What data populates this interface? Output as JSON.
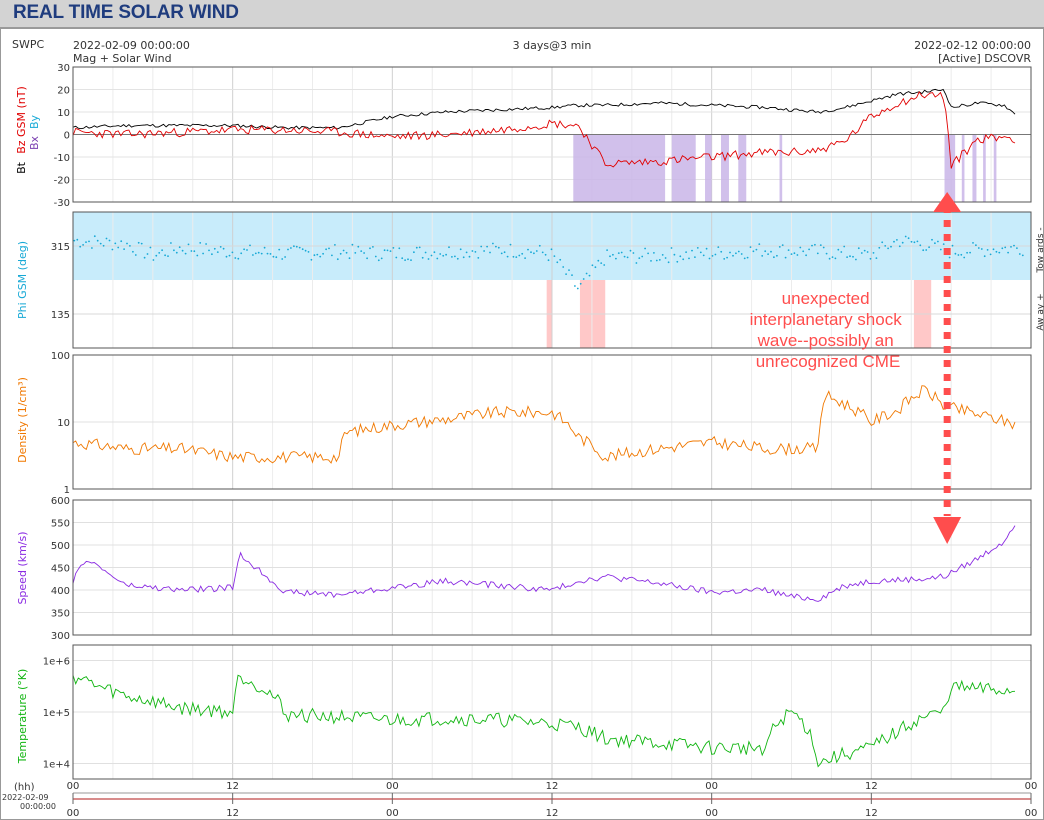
{
  "page_title": "REAL TIME SOLAR WIND",
  "header": {
    "source": "SWPC",
    "start_time": "2022-02-09 00:00:00",
    "subtitle_left": "Mag + Solar Wind",
    "range": "3 days@3 min",
    "end_time": "2022-02-12 00:00:00",
    "status": "[Active] DSCOVR"
  },
  "annotation": {
    "lines": [
      "unexpected",
      "interplanetary shock",
      "wave--possibly an",
      "unrecognized CME"
    ],
    "color": "#ff4d4d",
    "time_hours": 65.7
  },
  "colors": {
    "bt": "#000000",
    "bz": "#e00000",
    "phi": "#17a9d6",
    "phi_toward_fill": "#c8ecfb",
    "phi_away_fill": "#ffc8c8",
    "density": "#f07800",
    "speed": "#8a2be2",
    "temperature": "#11b511",
    "bz_shade": "#c9b5e8",
    "text": "#333333",
    "title": "#1f3c7e"
  },
  "time_axis": {
    "hours_label": "(hh)",
    "date_label": "2022-02-09",
    "date_time_label": "00:00:00",
    "ticks": [
      "00",
      "12",
      "00",
      "12",
      "00",
      "12",
      "00"
    ]
  },
  "chart_data": [
    {
      "type": "line",
      "name": "mag",
      "ylabel_parts": [
        "Bt",
        "Bz GSM (nT)",
        "Bx",
        "By"
      ],
      "ylim": [
        -30,
        30
      ],
      "yticks": [
        -30,
        -20,
        -10,
        0,
        10,
        20,
        30
      ],
      "x_hours": [
        0,
        4,
        8,
        12,
        16,
        20,
        24,
        28,
        32,
        36,
        38,
        40,
        44,
        48,
        52,
        54,
        56,
        58,
        60,
        62,
        64,
        65.5,
        66,
        68,
        70,
        71
      ],
      "series": [
        {
          "name": "Bt",
          "values": [
            3,
            4,
            4,
            4,
            3,
            3,
            8,
            10,
            11,
            12,
            13,
            13,
            14,
            13,
            12,
            11,
            10,
            12,
            15,
            18,
            19,
            20,
            12,
            14,
            13,
            8
          ]
        },
        {
          "name": "Bz GSM",
          "values": [
            1,
            0,
            1,
            2,
            2,
            1,
            -1,
            0,
            2,
            5,
            4,
            -13,
            -12,
            -10,
            -8,
            -8,
            -7,
            -3,
            8,
            14,
            18,
            17,
            -14,
            -2,
            -1,
            -2
          ]
        }
      ]
    },
    {
      "type": "scatter",
      "name": "phi",
      "ylabel": "Phi GSM (deg)",
      "ylim": [
        45,
        405
      ],
      "yticks": [
        135,
        315
      ],
      "right_labels": [
        "Tow ards -",
        "Aw ay +"
      ],
      "x_hours": [
        0,
        4,
        6,
        8,
        12,
        16,
        20,
        24,
        28,
        32,
        35,
        36,
        38,
        40,
        44,
        48,
        52,
        56,
        60,
        62,
        64,
        66,
        68,
        71
      ],
      "values": [
        330,
        320,
        290,
        310,
        300,
        295,
        300,
        295,
        300,
        305,
        300,
        290,
        200,
        285,
        290,
        295,
        305,
        300,
        290,
        330,
        320,
        300,
        305,
        310
      ]
    },
    {
      "type": "line",
      "name": "density",
      "ylabel": "Density (1/cm³)",
      "yscale": "log",
      "ylim": [
        1,
        100
      ],
      "yticks": [
        1,
        10,
        100
      ],
      "x_hours": [
        0,
        4,
        8,
        12,
        16,
        20,
        20.5,
        24,
        28,
        32,
        36,
        38,
        40,
        44,
        48,
        52,
        56,
        56.5,
        60,
        62,
        64,
        65.5,
        68,
        71
      ],
      "values": [
        5,
        4,
        4,
        3,
        3,
        3,
        7,
        9,
        11,
        14,
        14,
        6,
        3,
        4,
        5,
        4,
        4,
        25,
        10,
        15,
        30,
        17,
        13,
        9
      ]
    },
    {
      "type": "line",
      "name": "speed",
      "ylabel": "Speed (km/s)",
      "ylim": [
        300,
        600
      ],
      "yticks": [
        300,
        350,
        400,
        450,
        500,
        550,
        600
      ],
      "x_hours": [
        0,
        1,
        4,
        8,
        12,
        12.5,
        16,
        20,
        24,
        28,
        32,
        36,
        38,
        40,
        44,
        48,
        52,
        54,
        56,
        58,
        60,
        64,
        65.5,
        68,
        70,
        71
      ],
      "values": [
        420,
        470,
        410,
        400,
        405,
        480,
        395,
        390,
        405,
        420,
        410,
        400,
        420,
        430,
        415,
        395,
        400,
        385,
        380,
        410,
        420,
        425,
        430,
        470,
        510,
        560
      ]
    },
    {
      "type": "line",
      "name": "temperature",
      "ylabel": "Temperature (°K)",
      "yscale": "log",
      "ylim": [
        5000,
        2000000
      ],
      "yticks": [
        10000,
        100000,
        1000000
      ],
      "ytick_labels": [
        "1e+4",
        "1e+5",
        "1e+6"
      ],
      "x_hours": [
        0,
        2,
        4,
        8,
        12,
        12.5,
        16,
        20,
        24,
        28,
        32,
        36,
        38,
        40,
        44,
        48,
        52,
        54,
        56,
        58,
        60,
        62,
        64,
        65.5,
        66,
        68,
        71
      ],
      "values": [
        500000,
        300000,
        200000,
        120000,
        100000,
        500000,
        90000,
        80000,
        70000,
        75000,
        70000,
        60000,
        50000,
        30000,
        25000,
        20000,
        20000,
        100000,
        10000,
        15000,
        20000,
        40000,
        80000,
        100000,
        300000,
        280000,
        250000
      ]
    }
  ]
}
